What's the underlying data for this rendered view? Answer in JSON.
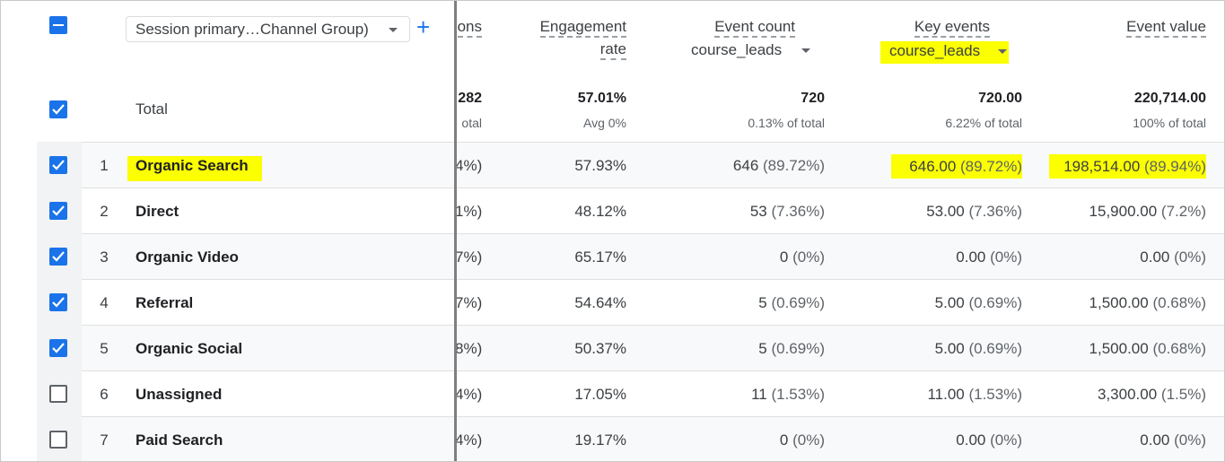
{
  "header": {
    "dimension_select": "Session primary…Channel Group)",
    "add_icon": "+",
    "sessions_partial": "ons",
    "engagement_rate_line1": "Engagement",
    "engagement_rate_line2": "rate",
    "event_count": "Event count",
    "event_count_filter": "course_leads",
    "key_events": "Key events",
    "key_events_filter": "course_leads",
    "event_value": "Event value"
  },
  "total": {
    "label": "Total",
    "sessions_partial": "282",
    "sessions_sub_partial": "otal",
    "engagement_rate": "57.01%",
    "engagement_rate_sub": "Avg 0%",
    "event_count": "720",
    "event_count_sub": "0.13% of total",
    "key_events": "720.00",
    "key_events_sub": "6.22% of total",
    "event_value": "220,714.00",
    "event_value_sub": "100% of total"
  },
  "rows": [
    {
      "num": "1",
      "name": "Organic Search",
      "sessions_pct": "4%)",
      "eng": "57.93%",
      "ec": "646",
      "ec_pct": "(89.72%)",
      "ke": "646.00",
      "ke_pct": "(89.72%)",
      "ev": "198,514.00",
      "ev_pct": "(89.94%)",
      "checked": true
    },
    {
      "num": "2",
      "name": "Direct",
      "sessions_pct": "1%)",
      "eng": "48.12%",
      "ec": "53",
      "ec_pct": "(7.36%)",
      "ke": "53.00",
      "ke_pct": "(7.36%)",
      "ev": "15,900.00",
      "ev_pct": "(7.2%)",
      "checked": true
    },
    {
      "num": "3",
      "name": "Organic Video",
      "sessions_pct": "7%)",
      "eng": "65.17%",
      "ec": "0",
      "ec_pct": "(0%)",
      "ke": "0.00",
      "ke_pct": "(0%)",
      "ev": "0.00",
      "ev_pct": "(0%)",
      "checked": true
    },
    {
      "num": "4",
      "name": "Referral",
      "sessions_pct": "7%)",
      "eng": "54.64%",
      "ec": "5",
      "ec_pct": "(0.69%)",
      "ke": "5.00",
      "ke_pct": "(0.69%)",
      "ev": "1,500.00",
      "ev_pct": "(0.68%)",
      "checked": true
    },
    {
      "num": "5",
      "name": "Organic Social",
      "sessions_pct": "8%)",
      "eng": "50.37%",
      "ec": "5",
      "ec_pct": "(0.69%)",
      "ke": "5.00",
      "ke_pct": "(0.69%)",
      "ev": "1,500.00",
      "ev_pct": "(0.68%)",
      "checked": true
    },
    {
      "num": "6",
      "name": "Unassigned",
      "sessions_pct": "4%)",
      "eng": "17.05%",
      "ec": "11",
      "ec_pct": "(1.53%)",
      "ke": "11.00",
      "ke_pct": "(1.53%)",
      "ev": "3,300.00",
      "ev_pct": "(1.5%)",
      "checked": false
    },
    {
      "num": "7",
      "name": "Paid Search",
      "sessions_pct": "4%)",
      "eng": "19.17%",
      "ec": "0",
      "ec_pct": "(0%)",
      "ke": "0.00",
      "ke_pct": "(0%)",
      "ev": "0.00",
      "ev_pct": "(0%)",
      "checked": false
    }
  ],
  "colors": {
    "accent": "#1a73e8",
    "highlight": "#fbff00"
  }
}
